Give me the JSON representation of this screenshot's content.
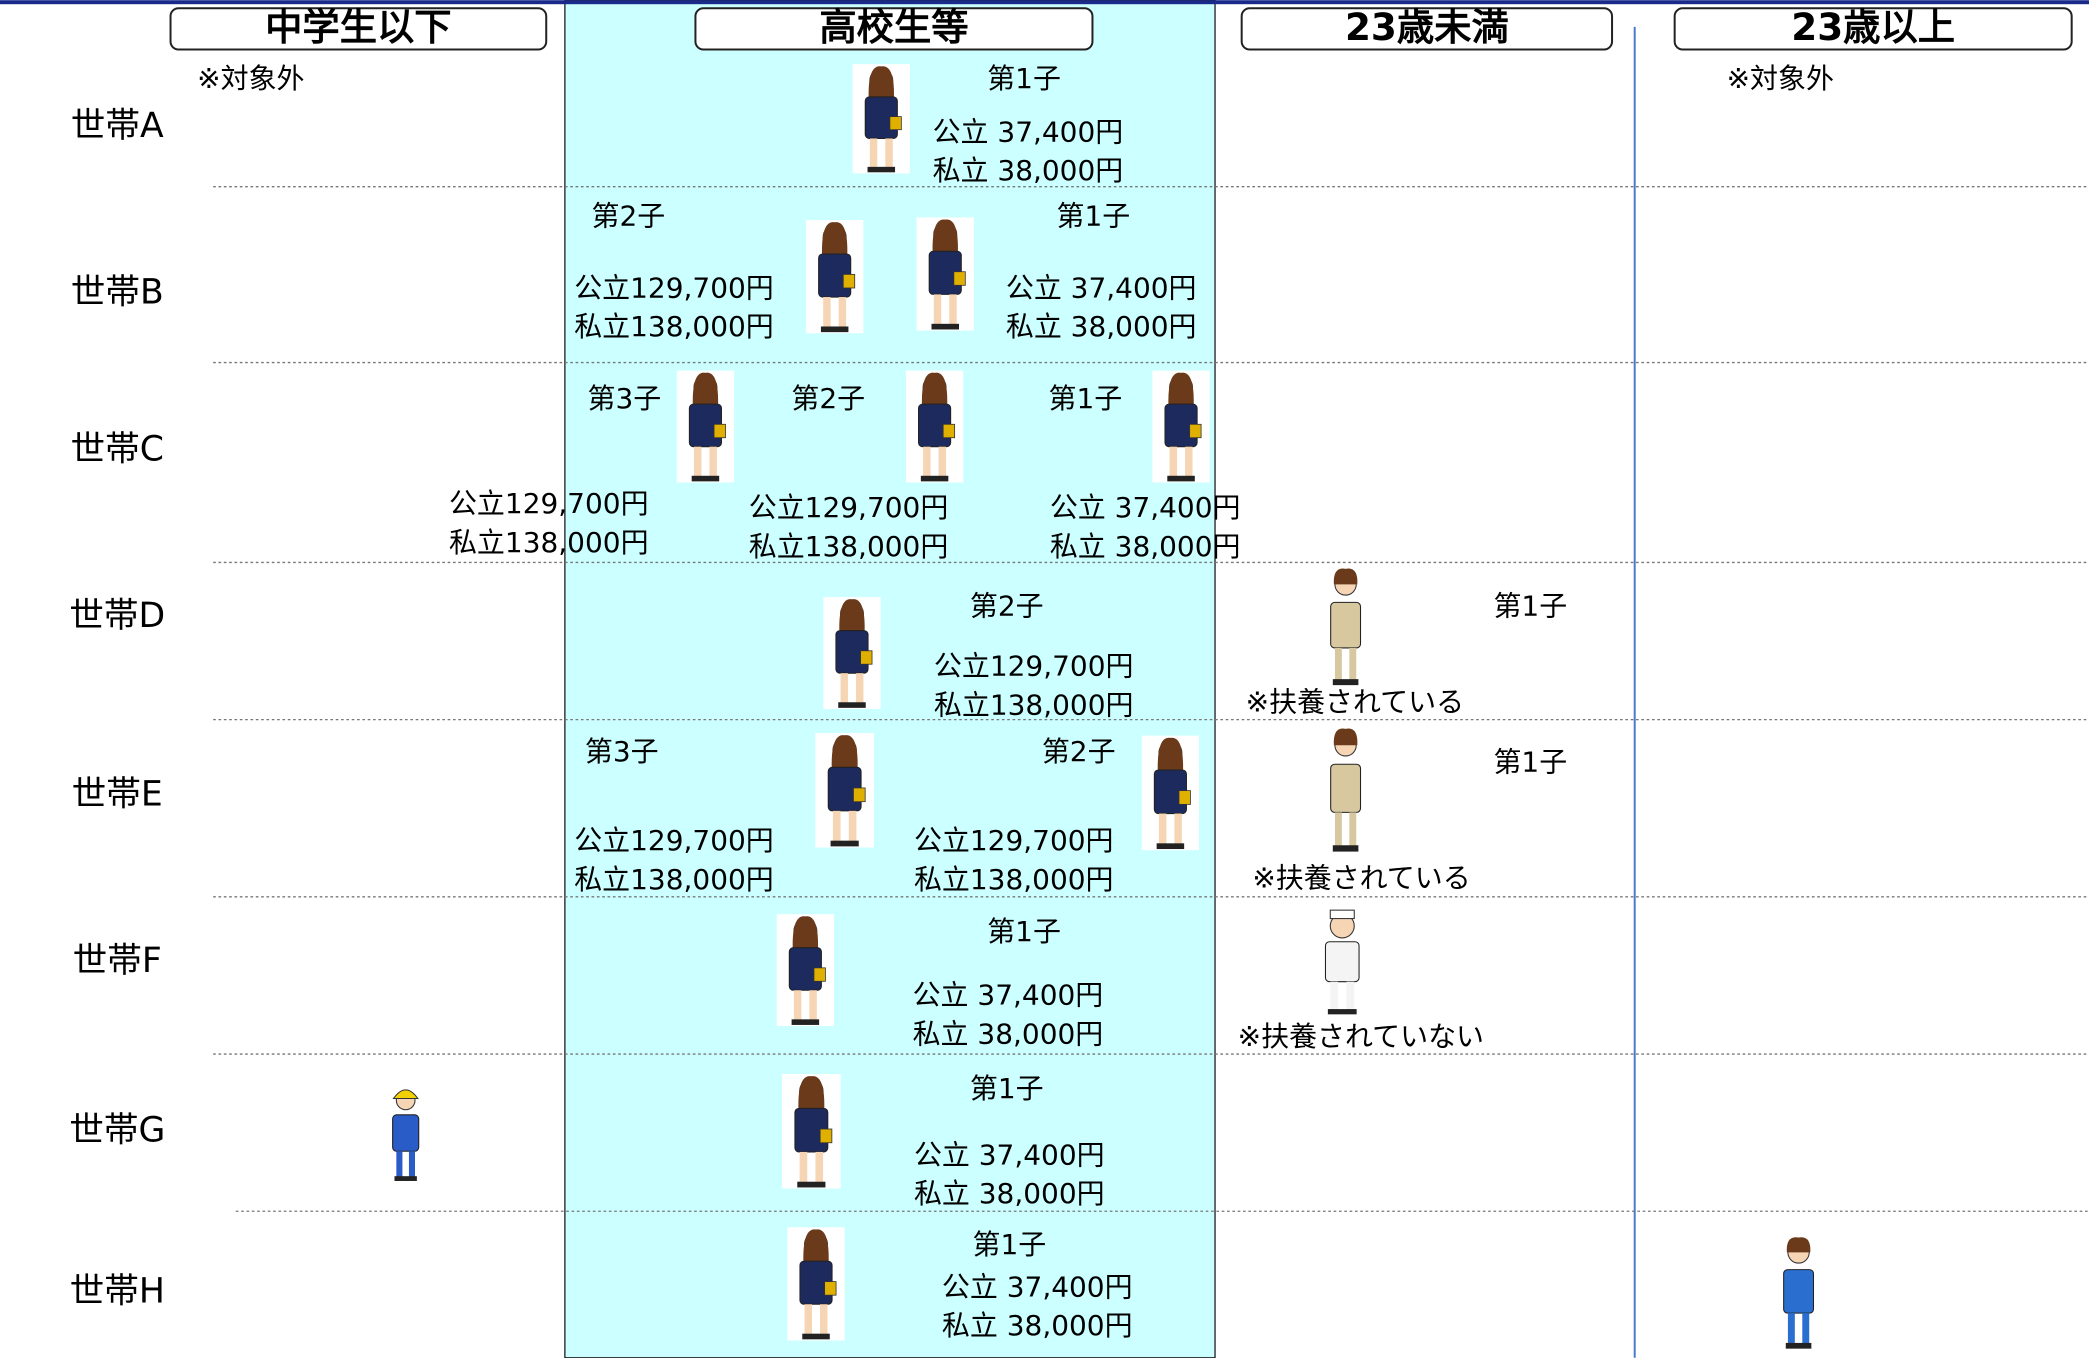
{
  "columns": [
    "中学生以下",
    "高校生等",
    "23歳未満",
    "23歳以上"
  ],
  "households": [
    {
      "label": "世帯A",
      "children": [
        {
          "order": "第1子",
          "public": "公立 37,400円",
          "private": "私立 38,000円"
        }
      ],
      "notes": [
        "※対象外",
        "※対象外"
      ]
    },
    {
      "label": "世帯B",
      "children": [
        {
          "order": "第2子",
          "public": "公立129,700円",
          "private": "私立138,000円"
        },
        {
          "order": "第1子",
          "public": "公立 37,400円",
          "private": "私立 38,000円"
        }
      ]
    },
    {
      "label": "世帯C",
      "children": [
        {
          "order": "第3子",
          "public": "公立129,700円",
          "private": "私立138,000円"
        },
        {
          "order": "第2子",
          "public": "公立129,700円",
          "private": "私立138,000円"
        },
        {
          "order": "第1子",
          "public": "公立 37,400円",
          "private": "私立 38,000円"
        }
      ]
    },
    {
      "label": "世帯D",
      "children": [
        {
          "order": "第2子",
          "public": "公立129,700円",
          "private": "私立138,000円"
        },
        {
          "order": "第1子",
          "note": "※扶養されている"
        }
      ]
    },
    {
      "label": "世帯E",
      "children": [
        {
          "order": "第3子",
          "public": "公立129,700円",
          "private": "私立138,000円"
        },
        {
          "order": "第2子",
          "public": "公立129,700円",
          "private": "私立138,000円"
        },
        {
          "order": "第1子",
          "note": "※扶養されている"
        }
      ]
    },
    {
      "label": "世帯F",
      "children": [
        {
          "order": "第1子",
          "public": "公立 37,400円",
          "private": "私立 38,000円"
        },
        {
          "note": "※扶養されていない"
        }
      ]
    },
    {
      "label": "世帯G",
      "children": [
        {
          "order": "第1子",
          "public": "公立 37,400円",
          "private": "私立 38,000円"
        }
      ]
    },
    {
      "label": "世帯H",
      "children": [
        {
          "order": "第1子",
          "public": "公立 37,400円",
          "private": "私立 38,000円"
        }
      ]
    }
  ]
}
